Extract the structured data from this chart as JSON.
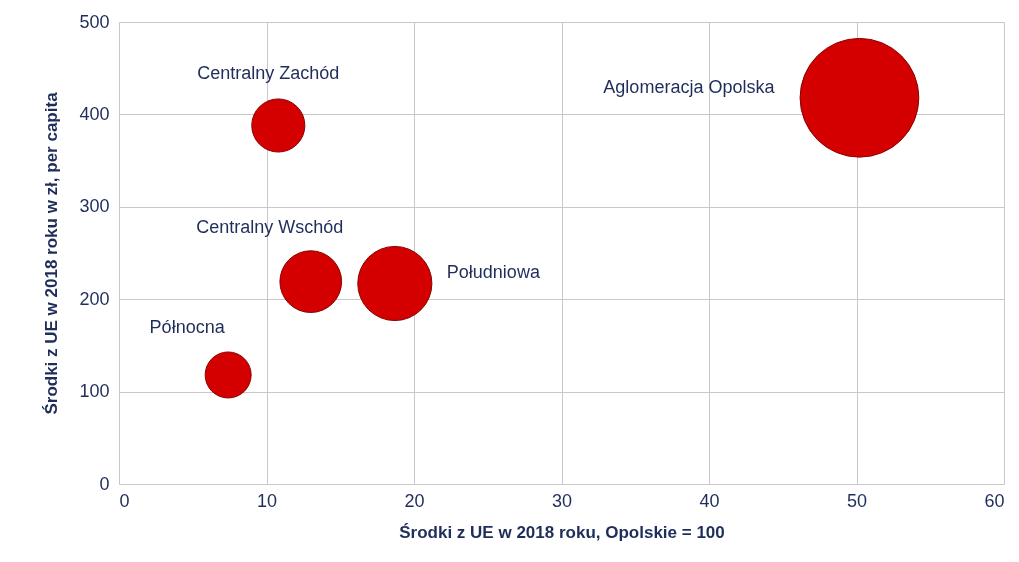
{
  "chart_data": {
    "type": "bubble",
    "xlabel": "Środki z UE w 2018 roku, Opolskie = 100",
    "ylabel": "Środki z UE w 2018 roku w zł, per capita",
    "xlim": [
      0,
      60
    ],
    "xticks": [
      0,
      10,
      20,
      30,
      40,
      50,
      60
    ],
    "ylim": [
      0,
      500
    ],
    "yticks": [
      0,
      100,
      200,
      300,
      400,
      500
    ],
    "grid": true,
    "legend": false,
    "series": [
      {
        "name": "Północna",
        "color": "#d40000",
        "x": [
          7.4
        ],
        "values": [
          118
        ],
        "sizes": [
          0.15
        ]
      },
      {
        "name": "Centralny Zachód",
        "color": "#d40000",
        "x": [
          10.8
        ],
        "values": [
          388
        ],
        "sizes": [
          0.2
        ]
      },
      {
        "name": "Centralny Wschód",
        "color": "#d40000",
        "x": [
          13
        ],
        "values": [
          219
        ],
        "sizes": [
          0.27
        ]
      },
      {
        "name": "Południowa",
        "color": "#d40000",
        "x": [
          18.7
        ],
        "values": [
          217
        ],
        "sizes": [
          0.39
        ]
      },
      {
        "name": "Aglomeracja Opolska",
        "color": "#d40000",
        "x": [
          50.2
        ],
        "values": [
          418
        ],
        "sizes": [
          1
        ]
      }
    ]
  }
}
